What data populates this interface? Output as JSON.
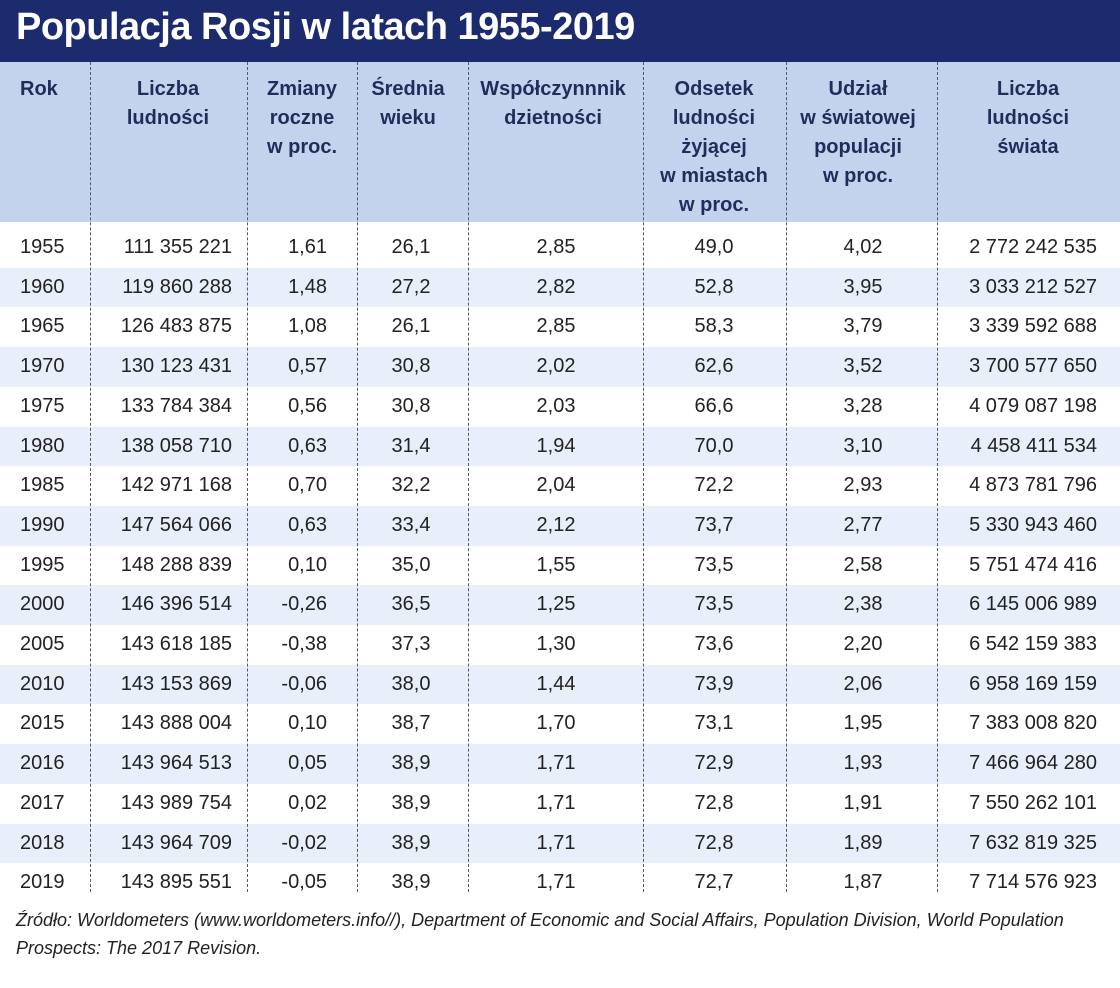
{
  "title": "Populacja Rosji w latach 1955-2019",
  "chart_data": {
    "type": "table",
    "title": "Populacja Rosji w latach 1955-2019",
    "columns": [
      "Rok",
      "Liczba\nludności",
      "Zmiany\nroczne\nw proc.",
      "Średnia\nwieku",
      "Współczynnnik\ndzietności",
      "Odsetek\nludności\nżyjącej\nw miastach\nw proc.",
      "Udział\nw światowej\npopulacji\nw proc.",
      "Liczba\nludności\nświata"
    ],
    "rows": [
      [
        "1955",
        "111 355 221",
        "1,61",
        "26,1",
        "2,85",
        "49,0",
        "4,02",
        "2 772 242 535"
      ],
      [
        "1960",
        "119 860 288",
        "1,48",
        "27,2",
        "2,82",
        "52,8",
        "3,95",
        "3 033 212 527"
      ],
      [
        "1965",
        "126 483 875",
        "1,08",
        "26,1",
        "2,85",
        "58,3",
        "3,79",
        "3 339 592 688"
      ],
      [
        "1970",
        "130 123 431",
        "0,57",
        "30,8",
        "2,02",
        "62,6",
        "3,52",
        "3 700 577 650"
      ],
      [
        "1975",
        "133 784 384",
        "0,56",
        "30,8",
        "2,03",
        "66,6",
        "3,28",
        "4 079 087 198"
      ],
      [
        "1980",
        "138 058 710",
        "0,63",
        "31,4",
        "1,94",
        "70,0",
        "3,10",
        "4 458 411 534"
      ],
      [
        "1985",
        "142 971 168",
        "0,70",
        "32,2",
        "2,04",
        "72,2",
        "2,93",
        "4 873 781 796"
      ],
      [
        "1990",
        "147 564 066",
        "0,63",
        "33,4",
        "2,12",
        "73,7",
        "2,77",
        "5 330 943 460"
      ],
      [
        "1995",
        "148 288 839",
        "0,10",
        "35,0",
        "1,55",
        "73,5",
        "2,58",
        "5 751 474 416"
      ],
      [
        "2000",
        "146 396 514",
        "-0,26",
        "36,5",
        "1,25",
        "73,5",
        "2,38",
        "6 145 006 989"
      ],
      [
        "2005",
        "143 618 185",
        "-0,38",
        "37,3",
        "1,30",
        "73,6",
        "2,20",
        "6 542 159 383"
      ],
      [
        "2010",
        "143 153 869",
        "-0,06",
        "38,0",
        "1,44",
        "73,9",
        "2,06",
        "6 958 169 159"
      ],
      [
        "2015",
        "143 888 004",
        "0,10",
        "38,7",
        "1,70",
        "73,1",
        "1,95",
        "7 383 008 820"
      ],
      [
        "2016",
        "143 964 513",
        "0,05",
        "38,9",
        "1,71",
        "72,9",
        "1,93",
        "7 466 964 280"
      ],
      [
        "2017",
        "143 989 754",
        "0,02",
        "38,9",
        "1,71",
        "72,8",
        "1,91",
        "7 550 262 101"
      ],
      [
        "2018",
        "143 964 709",
        "-0,02",
        "38,9",
        "1,71",
        "72,8",
        "1,89",
        "7 632 819 325"
      ],
      [
        "2019",
        "143 895 551",
        "-0,05",
        "38,9",
        "1,71",
        "72,7",
        "1,87",
        "7 714 576 923"
      ]
    ]
  },
  "source": "Źródło: Worldometers (www.worldometers.info//), Department of Economic and Social Affairs, Population Division, World Population Prospects: The 2017 Revision.",
  "colors": {
    "title_bg": "#1c2a6e",
    "header_bg": "#c3d3ee",
    "row_alt_bg": "#e8eefa"
  }
}
